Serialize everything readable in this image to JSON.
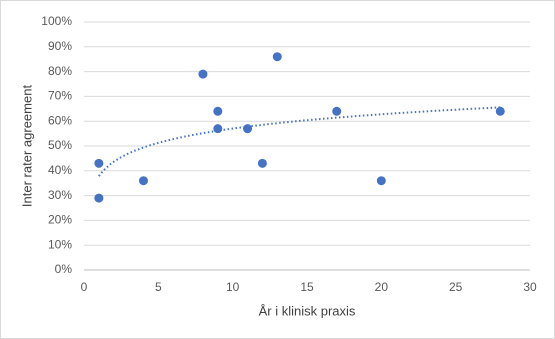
{
  "chart_data": {
    "type": "scatter",
    "x_label": "År i klinisk praxis",
    "y_label": "Inter rater agreement",
    "x": [
      1,
      1,
      4,
      8,
      9,
      9,
      11,
      12,
      13,
      17,
      20,
      28
    ],
    "values": [
      43,
      29,
      36,
      79,
      64,
      57,
      57,
      43,
      86,
      64,
      36,
      64
    ],
    "color": "#4472c4",
    "trendline": "logarithmic",
    "xlim": [
      0,
      30
    ],
    "xticks": [
      0,
      5,
      10,
      15,
      20,
      25,
      30
    ],
    "ylim": [
      0,
      100
    ],
    "yticks": [
      {
        "value": 0,
        "label": "0%"
      },
      {
        "value": 10,
        "label": "10%"
      },
      {
        "value": 20,
        "label": "20%"
      },
      {
        "value": 30,
        "label": "30%"
      },
      {
        "value": 40,
        "label": "40%"
      },
      {
        "value": 50,
        "label": "50%"
      },
      {
        "value": 60,
        "label": "60%"
      },
      {
        "value": 70,
        "label": "70%"
      },
      {
        "value": 80,
        "label": "80%"
      },
      {
        "value": 90,
        "label": "90%"
      },
      {
        "value": 100,
        "label": "100%"
      }
    ],
    "grid": true
  }
}
